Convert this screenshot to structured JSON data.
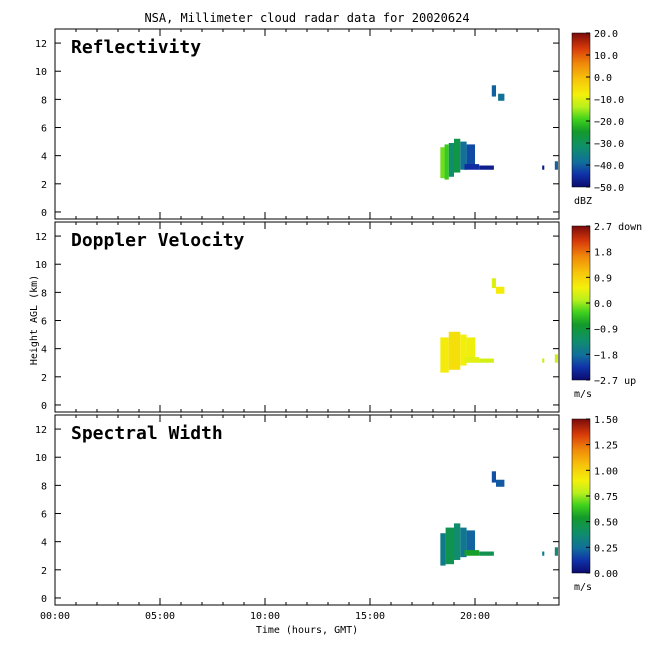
{
  "title": "NSA, Millimeter cloud radar data for 20020624",
  "xlabel": "Time (hours, GMT)",
  "ylabel": "Height AGL (km)",
  "chart_data": [
    {
      "type": "heatmap",
      "panel": "Reflectivity",
      "xlim": [
        0,
        24
      ],
      "ylim": [
        -0.5,
        13
      ],
      "x_ticks": [
        "00:00",
        "05:00",
        "10:00",
        "15:00",
        "20:00"
      ],
      "x_tick_values": [
        0,
        5,
        10,
        15,
        20
      ],
      "y_ticks": [
        "0",
        "2",
        "4",
        "6",
        "8",
        "10",
        "12"
      ],
      "y_tick_values": [
        0,
        2,
        4,
        6,
        8,
        10,
        12
      ],
      "colorbar": {
        "labels": [
          "20.0",
          "10.0",
          "0.0",
          "−10.0",
          "−20.0",
          "−30.0",
          "−40.0",
          "−50.0"
        ],
        "unit": "dBZ",
        "range": [
          -50,
          20
        ]
      },
      "regions": [
        {
          "t0": 18.35,
          "t1": 18.55,
          "h0": 2.4,
          "h1": 4.6,
          "value": -17
        },
        {
          "t0": 18.55,
          "t1": 18.75,
          "h0": 2.3,
          "h1": 4.8,
          "value": -20
        },
        {
          "t0": 18.75,
          "t1": 19.0,
          "h0": 2.5,
          "h1": 4.9,
          "value": -32
        },
        {
          "t0": 19.0,
          "t1": 19.3,
          "h0": 2.8,
          "h1": 5.2,
          "value": -28
        },
        {
          "t0": 19.3,
          "t1": 19.6,
          "h0": 3.0,
          "h1": 5.0,
          "value": -38
        },
        {
          "t0": 19.6,
          "t1": 20.0,
          "h0": 3.3,
          "h1": 4.8,
          "value": -42
        },
        {
          "t0": 19.5,
          "t1": 20.2,
          "h0": 3.0,
          "h1": 3.4,
          "value": -45
        },
        {
          "t0": 20.2,
          "t1": 20.9,
          "h0": 3.0,
          "h1": 3.3,
          "value": -47
        },
        {
          "t0": 20.8,
          "t1": 21.0,
          "h0": 8.2,
          "h1": 9.0,
          "value": -40
        },
        {
          "t0": 21.1,
          "t1": 21.4,
          "h0": 7.9,
          "h1": 8.4,
          "value": -38
        },
        {
          "t0": 23.2,
          "t1": 23.3,
          "h0": 3.0,
          "h1": 3.3,
          "value": -48
        },
        {
          "t0": 23.8,
          "t1": 23.95,
          "h0": 3.0,
          "h1": 3.6,
          "value": -40
        }
      ]
    },
    {
      "type": "heatmap",
      "panel": "Doppler Velocity",
      "xlim": [
        0,
        24
      ],
      "ylim": [
        -0.5,
        13
      ],
      "x_ticks": [
        "00:00",
        "05:00",
        "10:00",
        "15:00",
        "20:00"
      ],
      "x_tick_values": [
        0,
        5,
        10,
        15,
        20
      ],
      "y_ticks": [
        "0",
        "2",
        "4",
        "6",
        "8",
        "10",
        "12"
      ],
      "y_tick_values": [
        0,
        2,
        4,
        6,
        8,
        10,
        12
      ],
      "colorbar": {
        "labels": [
          "2.7 down",
          "1.8",
          "0.9",
          "0.0",
          "−0.9",
          "−1.8",
          "−2.7 up"
        ],
        "unit": "m/s",
        "range": [
          -2.7,
          2.7
        ]
      },
      "regions": [
        {
          "t0": 18.35,
          "t1": 18.75,
          "h0": 2.3,
          "h1": 4.8,
          "value": 0.6
        },
        {
          "t0": 18.75,
          "t1": 19.3,
          "h0": 2.5,
          "h1": 5.2,
          "value": 0.75
        },
        {
          "t0": 19.3,
          "t1": 19.6,
          "h0": 2.8,
          "h1": 5.0,
          "value": 0.55
        },
        {
          "t0": 19.6,
          "t1": 20.0,
          "h0": 3.2,
          "h1": 4.8,
          "value": 0.5
        },
        {
          "t0": 19.5,
          "t1": 20.2,
          "h0": 3.0,
          "h1": 3.4,
          "value": 0.4
        },
        {
          "t0": 20.2,
          "t1": 20.9,
          "h0": 3.0,
          "h1": 3.3,
          "value": 0.3
        },
        {
          "t0": 20.8,
          "t1": 21.0,
          "h0": 8.3,
          "h1": 9.0,
          "value": 0.35
        },
        {
          "t0": 21.0,
          "t1": 21.4,
          "h0": 7.9,
          "h1": 8.4,
          "value": 0.6
        },
        {
          "t0": 23.2,
          "t1": 23.3,
          "h0": 3.0,
          "h1": 3.3,
          "value": 0.2
        },
        {
          "t0": 23.8,
          "t1": 23.95,
          "h0": 3.0,
          "h1": 3.6,
          "value": 0.3
        }
      ]
    },
    {
      "type": "heatmap",
      "panel": "Spectral Width",
      "xlim": [
        0,
        24
      ],
      "ylim": [
        -0.5,
        13
      ],
      "x_ticks": [
        "00:00",
        "05:00",
        "10:00",
        "15:00",
        "20:00"
      ],
      "x_tick_values": [
        0,
        5,
        10,
        15,
        20
      ],
      "y_ticks": [
        "0",
        "2",
        "4",
        "6",
        "8",
        "10",
        "12"
      ],
      "y_tick_values": [
        0,
        2,
        4,
        6,
        8,
        10,
        12
      ],
      "colorbar": {
        "labels": [
          "1.50",
          "1.25",
          "1.00",
          "0.75",
          "0.50",
          "0.25",
          "0.00"
        ],
        "unit": "m/s",
        "range": [
          0,
          1.5
        ]
      },
      "regions": [
        {
          "t0": 18.35,
          "t1": 18.6,
          "h0": 2.3,
          "h1": 4.6,
          "value": 0.3
        },
        {
          "t0": 18.6,
          "t1": 19.0,
          "h0": 2.4,
          "h1": 5.0,
          "value": 0.45
        },
        {
          "t0": 19.0,
          "t1": 19.3,
          "h0": 2.7,
          "h1": 5.3,
          "value": 0.38
        },
        {
          "t0": 19.3,
          "t1": 19.6,
          "h0": 2.9,
          "h1": 5.0,
          "value": 0.28
        },
        {
          "t0": 19.6,
          "t1": 20.0,
          "h0": 3.3,
          "h1": 4.8,
          "value": 0.22
        },
        {
          "t0": 19.5,
          "t1": 20.2,
          "h0": 3.0,
          "h1": 3.4,
          "value": 0.55
        },
        {
          "t0": 20.2,
          "t1": 20.9,
          "h0": 3.0,
          "h1": 3.3,
          "value": 0.45
        },
        {
          "t0": 20.8,
          "t1": 21.0,
          "h0": 8.2,
          "h1": 9.0,
          "value": 0.18
        },
        {
          "t0": 21.0,
          "t1": 21.4,
          "h0": 7.9,
          "h1": 8.4,
          "value": 0.2
        },
        {
          "t0": 23.2,
          "t1": 23.3,
          "h0": 3.0,
          "h1": 3.3,
          "value": 0.3
        },
        {
          "t0": 23.8,
          "t1": 23.95,
          "h0": 3.0,
          "h1": 3.6,
          "value": 0.35
        }
      ]
    }
  ]
}
